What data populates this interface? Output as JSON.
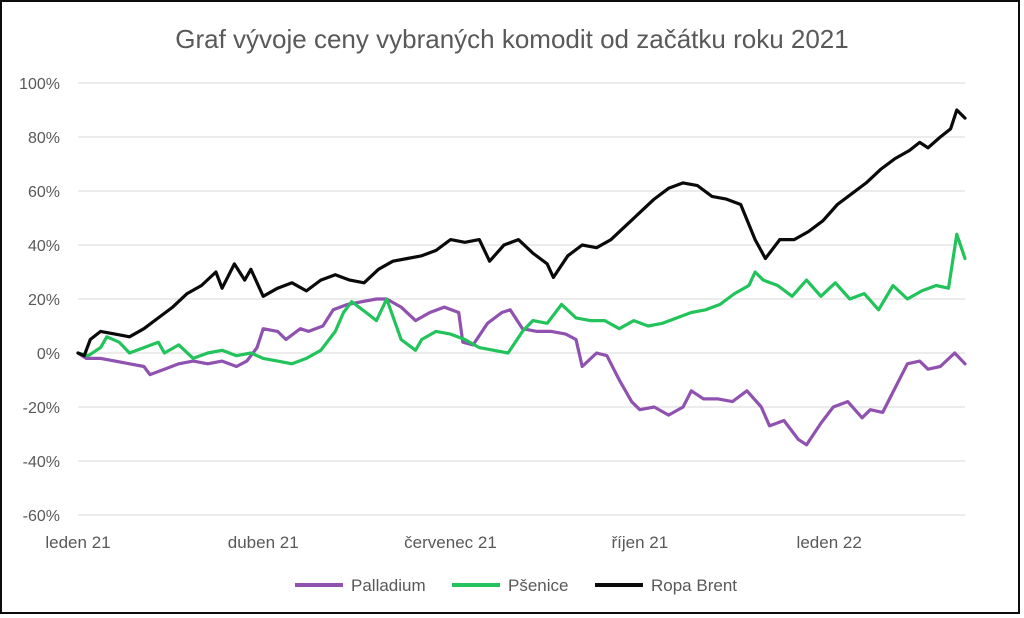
{
  "chart_data": {
    "type": "line",
    "title": "Graf vývoje ceny vybraných komodit od začátku roku 2021",
    "xlabel": "",
    "ylabel": "",
    "ylim": [
      -60,
      100
    ],
    "yticks": [
      100,
      80,
      60,
      40,
      20,
      0,
      -20,
      -40,
      -60
    ],
    "ytick_labels": [
      "100%",
      "80%",
      "60%",
      "40%",
      "20%",
      "0%",
      "-20%",
      "-40%",
      "-60%"
    ],
    "xlim": [
      "2021-01-01",
      "2022-03-08"
    ],
    "xticks": [
      {
        "date": "2021-01-01",
        "label": "leden 21"
      },
      {
        "date": "2021-04-01",
        "label": "duben 21"
      },
      {
        "date": "2021-07-01",
        "label": "červenec 21"
      },
      {
        "date": "2021-10-01",
        "label": "říjen 21"
      },
      {
        "date": "2022-01-01",
        "label": "leden 22"
      }
    ],
    "grid": true,
    "legend_position": "bottom",
    "colors": {
      "Palladium": "#8f52b0",
      "Pšenice": "#22c35a",
      "Ropa Brent": "#0a0a0a"
    },
    "series": [
      {
        "name": "Palladium",
        "color": "#8f52b0",
        "points": [
          [
            "2021-01-01",
            0
          ],
          [
            "2021-01-05",
            -2
          ],
          [
            "2021-01-12",
            -2
          ],
          [
            "2021-01-19",
            -3
          ],
          [
            "2021-01-26",
            -4
          ],
          [
            "2021-02-02",
            -5
          ],
          [
            "2021-02-05",
            -8
          ],
          [
            "2021-02-12",
            -6
          ],
          [
            "2021-02-19",
            -4
          ],
          [
            "2021-02-26",
            -3
          ],
          [
            "2021-03-05",
            -4
          ],
          [
            "2021-03-12",
            -3
          ],
          [
            "2021-03-19",
            -5
          ],
          [
            "2021-03-24",
            -3
          ],
          [
            "2021-03-29",
            2
          ],
          [
            "2021-04-01",
            9
          ],
          [
            "2021-04-08",
            8
          ],
          [
            "2021-04-12",
            5
          ],
          [
            "2021-04-19",
            9
          ],
          [
            "2021-04-23",
            8
          ],
          [
            "2021-04-30",
            10
          ],
          [
            "2021-05-05",
            16
          ],
          [
            "2021-05-12",
            18
          ],
          [
            "2021-05-19",
            19
          ],
          [
            "2021-05-26",
            20
          ],
          [
            "2021-05-31",
            20
          ],
          [
            "2021-06-07",
            17
          ],
          [
            "2021-06-14",
            12
          ],
          [
            "2021-06-21",
            15
          ],
          [
            "2021-06-28",
            17
          ],
          [
            "2021-07-05",
            15
          ],
          [
            "2021-07-07",
            4
          ],
          [
            "2021-07-12",
            3
          ],
          [
            "2021-07-19",
            11
          ],
          [
            "2021-07-26",
            15
          ],
          [
            "2021-07-30",
            16
          ],
          [
            "2021-08-05",
            9
          ],
          [
            "2021-08-12",
            8
          ],
          [
            "2021-08-19",
            8
          ],
          [
            "2021-08-26",
            7
          ],
          [
            "2021-08-31",
            5
          ],
          [
            "2021-09-03",
            -5
          ],
          [
            "2021-09-10",
            0
          ],
          [
            "2021-09-15",
            -1
          ],
          [
            "2021-09-21",
            -10
          ],
          [
            "2021-09-27",
            -18
          ],
          [
            "2021-10-01",
            -21
          ],
          [
            "2021-10-08",
            -20
          ],
          [
            "2021-10-15",
            -23
          ],
          [
            "2021-10-22",
            -20
          ],
          [
            "2021-10-26",
            -14
          ],
          [
            "2021-11-01",
            -17
          ],
          [
            "2021-11-08",
            -17
          ],
          [
            "2021-11-15",
            -18
          ],
          [
            "2021-11-22",
            -14
          ],
          [
            "2021-11-29",
            -20
          ],
          [
            "2021-12-03",
            -27
          ],
          [
            "2021-12-10",
            -25
          ],
          [
            "2021-12-17",
            -32
          ],
          [
            "2021-12-21",
            -34
          ],
          [
            "2021-12-28",
            -26
          ],
          [
            "2022-01-03",
            -20
          ],
          [
            "2022-01-10",
            -18
          ],
          [
            "2022-01-17",
            -24
          ],
          [
            "2022-01-21",
            -21
          ],
          [
            "2022-01-27",
            -22
          ],
          [
            "2022-02-02",
            -13
          ],
          [
            "2022-02-08",
            -4
          ],
          [
            "2022-02-14",
            -3
          ],
          [
            "2022-02-18",
            -6
          ],
          [
            "2022-02-24",
            -5
          ],
          [
            "2022-03-03",
            0
          ],
          [
            "2022-03-08",
            -4
          ]
        ]
      },
      {
        "name": "Pšenice",
        "color": "#22c35a",
        "points": [
          [
            "2021-01-01",
            0
          ],
          [
            "2021-01-06",
            -1
          ],
          [
            "2021-01-12",
            2
          ],
          [
            "2021-01-15",
            6
          ],
          [
            "2021-01-21",
            4
          ],
          [
            "2021-01-26",
            0
          ],
          [
            "2021-02-02",
            2
          ],
          [
            "2021-02-09",
            4
          ],
          [
            "2021-02-12",
            0
          ],
          [
            "2021-02-19",
            3
          ],
          [
            "2021-02-26",
            -2
          ],
          [
            "2021-03-05",
            0
          ],
          [
            "2021-03-12",
            1
          ],
          [
            "2021-03-19",
            -1
          ],
          [
            "2021-03-26",
            0
          ],
          [
            "2021-04-01",
            -2
          ],
          [
            "2021-04-08",
            -3
          ],
          [
            "2021-04-15",
            -4
          ],
          [
            "2021-04-22",
            -2
          ],
          [
            "2021-04-29",
            1
          ],
          [
            "2021-05-06",
            8
          ],
          [
            "2021-05-10",
            15
          ],
          [
            "2021-05-14",
            19
          ],
          [
            "2021-05-21",
            15
          ],
          [
            "2021-05-26",
            12
          ],
          [
            "2021-05-31",
            20
          ],
          [
            "2021-06-07",
            5
          ],
          [
            "2021-06-14",
            1
          ],
          [
            "2021-06-17",
            5
          ],
          [
            "2021-06-24",
            8
          ],
          [
            "2021-07-01",
            7
          ],
          [
            "2021-07-08",
            5
          ],
          [
            "2021-07-15",
            2
          ],
          [
            "2021-07-22",
            1
          ],
          [
            "2021-07-29",
            0
          ],
          [
            "2021-08-05",
            8
          ],
          [
            "2021-08-10",
            12
          ],
          [
            "2021-08-17",
            11
          ],
          [
            "2021-08-24",
            18
          ],
          [
            "2021-08-31",
            13
          ],
          [
            "2021-09-07",
            12
          ],
          [
            "2021-09-14",
            12
          ],
          [
            "2021-09-21",
            9
          ],
          [
            "2021-09-28",
            12
          ],
          [
            "2021-10-05",
            10
          ],
          [
            "2021-10-12",
            11
          ],
          [
            "2021-10-19",
            13
          ],
          [
            "2021-10-26",
            15
          ],
          [
            "2021-11-02",
            16
          ],
          [
            "2021-11-09",
            18
          ],
          [
            "2021-11-16",
            22
          ],
          [
            "2021-11-23",
            25
          ],
          [
            "2021-11-26",
            30
          ],
          [
            "2021-11-30",
            27
          ],
          [
            "2021-12-07",
            25
          ],
          [
            "2021-12-14",
            21
          ],
          [
            "2021-12-21",
            27
          ],
          [
            "2021-12-28",
            21
          ],
          [
            "2022-01-04",
            26
          ],
          [
            "2022-01-11",
            20
          ],
          [
            "2022-01-18",
            22
          ],
          [
            "2022-01-25",
            16
          ],
          [
            "2022-02-01",
            25
          ],
          [
            "2022-02-08",
            20
          ],
          [
            "2022-02-15",
            23
          ],
          [
            "2022-02-22",
            25
          ],
          [
            "2022-02-28",
            24
          ],
          [
            "2022-03-04",
            44
          ],
          [
            "2022-03-08",
            35
          ]
        ]
      },
      {
        "name": "Ropa Brent",
        "color": "#0a0a0a",
        "points": [
          [
            "2021-01-01",
            0
          ],
          [
            "2021-01-04",
            -1
          ],
          [
            "2021-01-07",
            5
          ],
          [
            "2021-01-12",
            8
          ],
          [
            "2021-01-19",
            7
          ],
          [
            "2021-01-26",
            6
          ],
          [
            "2021-02-02",
            9
          ],
          [
            "2021-02-09",
            13
          ],
          [
            "2021-02-16",
            17
          ],
          [
            "2021-02-23",
            22
          ],
          [
            "2021-03-02",
            25
          ],
          [
            "2021-03-09",
            30
          ],
          [
            "2021-03-12",
            24
          ],
          [
            "2021-03-18",
            33
          ],
          [
            "2021-03-23",
            27
          ],
          [
            "2021-03-26",
            31
          ],
          [
            "2021-04-01",
            21
          ],
          [
            "2021-04-08",
            24
          ],
          [
            "2021-04-15",
            26
          ],
          [
            "2021-04-22",
            23
          ],
          [
            "2021-04-29",
            27
          ],
          [
            "2021-05-06",
            29
          ],
          [
            "2021-05-13",
            27
          ],
          [
            "2021-05-20",
            26
          ],
          [
            "2021-05-27",
            31
          ],
          [
            "2021-06-03",
            34
          ],
          [
            "2021-06-10",
            35
          ],
          [
            "2021-06-17",
            36
          ],
          [
            "2021-06-24",
            38
          ],
          [
            "2021-07-01",
            42
          ],
          [
            "2021-07-08",
            41
          ],
          [
            "2021-07-15",
            42
          ],
          [
            "2021-07-20",
            34
          ],
          [
            "2021-07-27",
            40
          ],
          [
            "2021-08-03",
            42
          ],
          [
            "2021-08-10",
            37
          ],
          [
            "2021-08-17",
            33
          ],
          [
            "2021-08-20",
            28
          ],
          [
            "2021-08-27",
            36
          ],
          [
            "2021-09-03",
            40
          ],
          [
            "2021-09-10",
            39
          ],
          [
            "2021-09-17",
            42
          ],
          [
            "2021-09-24",
            47
          ],
          [
            "2021-10-01",
            52
          ],
          [
            "2021-10-08",
            57
          ],
          [
            "2021-10-15",
            61
          ],
          [
            "2021-10-22",
            63
          ],
          [
            "2021-10-29",
            62
          ],
          [
            "2021-11-05",
            58
          ],
          [
            "2021-11-12",
            57
          ],
          [
            "2021-11-19",
            55
          ],
          [
            "2021-11-26",
            42
          ],
          [
            "2021-12-01",
            35
          ],
          [
            "2021-12-08",
            42
          ],
          [
            "2021-12-15",
            42
          ],
          [
            "2021-12-22",
            45
          ],
          [
            "2021-12-29",
            49
          ],
          [
            "2022-01-05",
            55
          ],
          [
            "2022-01-12",
            59
          ],
          [
            "2022-01-19",
            63
          ],
          [
            "2022-01-26",
            68
          ],
          [
            "2022-02-02",
            72
          ],
          [
            "2022-02-09",
            75
          ],
          [
            "2022-02-14",
            78
          ],
          [
            "2022-02-18",
            76
          ],
          [
            "2022-02-24",
            80
          ],
          [
            "2022-03-01",
            83
          ],
          [
            "2022-03-04",
            90
          ],
          [
            "2022-03-08",
            87
          ]
        ]
      }
    ]
  }
}
